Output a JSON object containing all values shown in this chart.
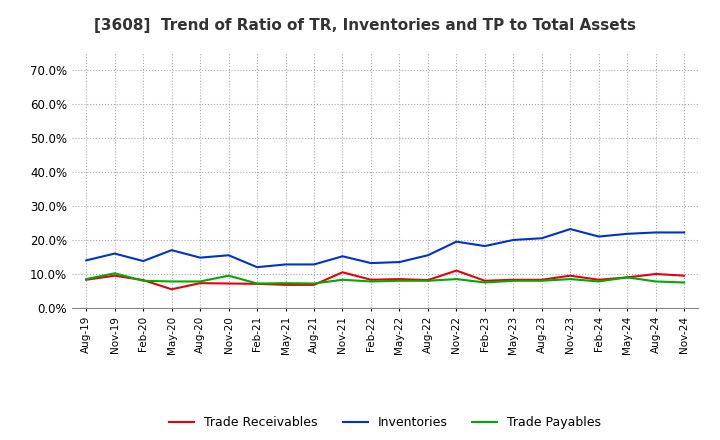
{
  "title": "[3608]  Trend of Ratio of TR, Inventories and TP to Total Assets",
  "x_labels": [
    "Aug-19",
    "Nov-19",
    "Feb-20",
    "May-20",
    "Aug-20",
    "Nov-20",
    "Feb-21",
    "May-21",
    "Aug-21",
    "Nov-21",
    "Feb-22",
    "May-22",
    "Aug-22",
    "Nov-22",
    "Feb-23",
    "May-23",
    "Aug-23",
    "Nov-23",
    "Feb-24",
    "May-24",
    "Aug-24",
    "Nov-24"
  ],
  "trade_receivables": [
    0.083,
    0.095,
    0.082,
    0.055,
    0.073,
    0.072,
    0.071,
    0.068,
    0.068,
    0.105,
    0.083,
    0.085,
    0.082,
    0.11,
    0.08,
    0.083,
    0.083,
    0.095,
    0.083,
    0.09,
    0.1,
    0.095
  ],
  "inventories": [
    0.14,
    0.16,
    0.138,
    0.17,
    0.148,
    0.155,
    0.12,
    0.128,
    0.128,
    0.152,
    0.132,
    0.135,
    0.155,
    0.195,
    0.182,
    0.2,
    0.205,
    0.232,
    0.21,
    0.218,
    0.222,
    0.222
  ],
  "trade_payables": [
    0.085,
    0.102,
    0.08,
    0.078,
    0.078,
    0.095,
    0.072,
    0.073,
    0.072,
    0.083,
    0.078,
    0.08,
    0.08,
    0.085,
    0.075,
    0.08,
    0.08,
    0.085,
    0.078,
    0.09,
    0.078,
    0.075
  ],
  "tr_color": "#e8000d",
  "inv_color": "#0033cc",
  "tp_color": "#00aa00",
  "ylim": [
    0.0,
    0.75
  ],
  "yticks": [
    0.0,
    0.1,
    0.2,
    0.3,
    0.4,
    0.5,
    0.6,
    0.7
  ],
  "background_color": "#ffffff",
  "grid_color": "#aaaaaa",
  "title_fontsize": 11,
  "legend_labels": [
    "Trade Receivables",
    "Inventories",
    "Trade Payables"
  ]
}
